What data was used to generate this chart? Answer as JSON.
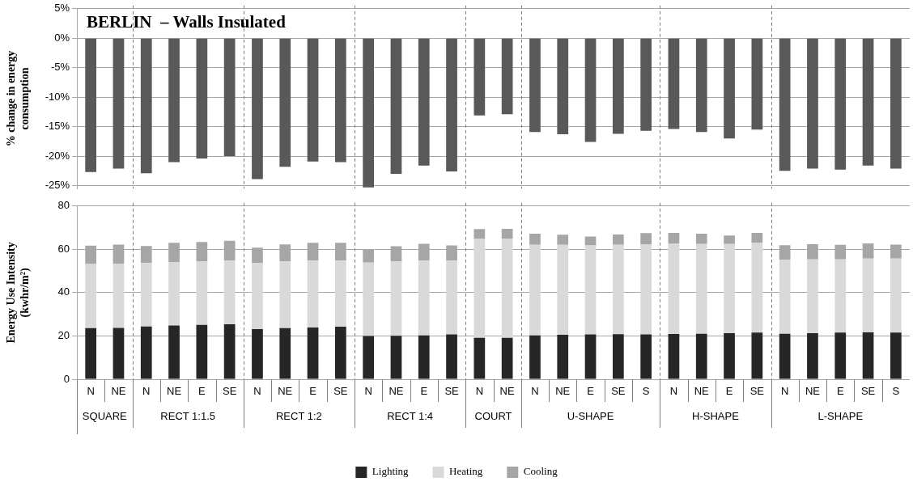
{
  "chart_data": [
    {
      "type": "bar",
      "title": "BERLIN  – Walls Insulated",
      "ylabel": "% change in energy consumption",
      "categories": [
        "N",
        "NE",
        "N",
        "NE",
        "E",
        "SE",
        "N",
        "NE",
        "E",
        "SE",
        "N",
        "NE",
        "E",
        "SE",
        "N",
        "NE",
        "N",
        "NE",
        "E",
        "SE",
        "S",
        "N",
        "NE",
        "E",
        "SE",
        "N",
        "NE",
        "E",
        "SE",
        "S"
      ],
      "series": [
        {
          "color": "#595959",
          "values": [
            -22.7,
            -22.1,
            -22.9,
            -21.0,
            -20.4,
            -20.0,
            -23.9,
            -21.8,
            -20.9,
            -21.0,
            -25.3,
            -23.0,
            -21.6,
            -22.6,
            -13.1,
            -12.9,
            -15.9,
            -16.3,
            -17.6,
            -16.2,
            -15.7,
            -15.4,
            -15.9,
            -17.0,
            -15.5,
            -22.5,
            -22.1,
            -22.3,
            -21.6,
            -22.1
          ]
        }
      ],
      "ylim": [
        -25.5,
        5
      ],
      "yticks": [
        {
          "value": 5,
          "label": "5%"
        },
        {
          "value": 0,
          "label": "0%"
        },
        {
          "value": -5,
          "label": "-5%"
        },
        {
          "value": -10,
          "label": "-10%"
        },
        {
          "value": -15,
          "label": "-15%"
        },
        {
          "value": -20,
          "label": "-20%"
        },
        {
          "value": -25,
          "label": "-25%"
        }
      ],
      "grid": "y",
      "tick_labels": "y",
      "legend": false
    },
    {
      "type": "bar",
      "ylabel": "Energy Use Intensity (kwhr/m²)",
      "stacked": true,
      "categories": [
        "N",
        "NE",
        "N",
        "NE",
        "E",
        "SE",
        "N",
        "NE",
        "E",
        "SE",
        "N",
        "NE",
        "E",
        "SE",
        "N",
        "NE",
        "N",
        "NE",
        "E",
        "SE",
        "S",
        "N",
        "NE",
        "E",
        "SE",
        "N",
        "NE",
        "E",
        "SE",
        "S"
      ],
      "series": [
        {
          "name": "Lighting",
          "color": "#262626",
          "values": [
            23.6,
            23.7,
            24.4,
            24.8,
            25.1,
            25.4,
            23.2,
            23.6,
            23.9,
            24.3,
            20.0,
            20.1,
            20.3,
            20.7,
            19.1,
            19.1,
            20.3,
            20.5,
            20.7,
            20.8,
            20.7,
            20.9,
            21.0,
            21.3,
            21.6,
            21.0,
            21.3,
            21.6,
            21.7,
            21.6
          ]
        },
        {
          "name": "Heating",
          "color": "#d9d9d9",
          "values": [
            29.6,
            29.7,
            29.3,
            29.4,
            29.4,
            29.4,
            30.6,
            30.9,
            30.9,
            30.5,
            33.9,
            34.4,
            34.5,
            34.1,
            45.9,
            45.9,
            41.8,
            41.6,
            41.1,
            41.3,
            41.7,
            41.7,
            41.5,
            41.2,
            41.3,
            34.3,
            34.1,
            33.8,
            34.0,
            34.1
          ]
        },
        {
          "name": "Cooling",
          "color": "#a6a6a6",
          "values": [
            8.5,
            8.8,
            7.8,
            8.8,
            8.9,
            9.2,
            7.0,
            7.8,
            8.2,
            8.2,
            6.1,
            6.9,
            7.8,
            7.0,
            4.4,
            4.5,
            5.1,
            4.7,
            4.1,
            4.8,
            5.1,
            5.0,
            4.7,
            3.9,
            4.7,
            6.6,
            7.0,
            6.7,
            7.0,
            6.5
          ]
        }
      ],
      "annotations": [
        "SQUARE",
        "RECT 1:1.5",
        "RECT 1:2",
        "RECT 1:4",
        "COURT",
        "U-SHAPE",
        "H-SHAPE",
        "L-SHAPE"
      ],
      "ylim": [
        0,
        80
      ],
      "yticks": [
        0,
        20,
        40,
        60,
        80
      ],
      "grid": "y",
      "legend": "bottom"
    }
  ]
}
